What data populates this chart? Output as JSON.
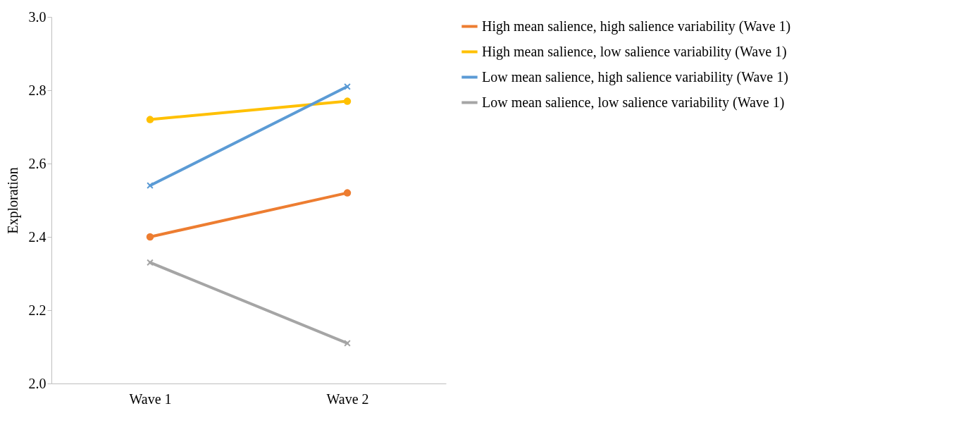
{
  "chart_data": {
    "type": "line",
    "ylabel": "Exploration",
    "categories": [
      "Wave 1",
      "Wave 2"
    ],
    "ylim": [
      2.0,
      3.0
    ],
    "yticks": [
      {
        "value": 2.0,
        "label": "2.0"
      },
      {
        "value": 2.2,
        "label": "2.2"
      },
      {
        "value": 2.4,
        "label": "2.4"
      },
      {
        "value": 2.6,
        "label": "2.6"
      },
      {
        "value": 2.8,
        "label": "2.8"
      },
      {
        "value": 3.0,
        "label": "3.0"
      }
    ],
    "grid": false,
    "legend": "right",
    "line_style": "solid",
    "series": [
      {
        "name": "High mean salience, high salience variability (Wave 1)",
        "color": "#ed7d31",
        "marker": "circle",
        "values": [
          2.4,
          2.52
        ]
      },
      {
        "name": "High mean salience, low salience variability (Wave 1)",
        "color": "#ffc000",
        "marker": "circle",
        "values": [
          2.72,
          2.77
        ]
      },
      {
        "name": "Low mean salience, high salience variability (Wave 1)",
        "color": "#5b9bd5",
        "marker": "cross",
        "values": [
          2.54,
          2.81
        ]
      },
      {
        "name": "Low mean salience, low salience variability (Wave 1)",
        "color": "#a5a5a5",
        "marker": "cross",
        "values": [
          2.33,
          2.11
        ]
      }
    ]
  }
}
